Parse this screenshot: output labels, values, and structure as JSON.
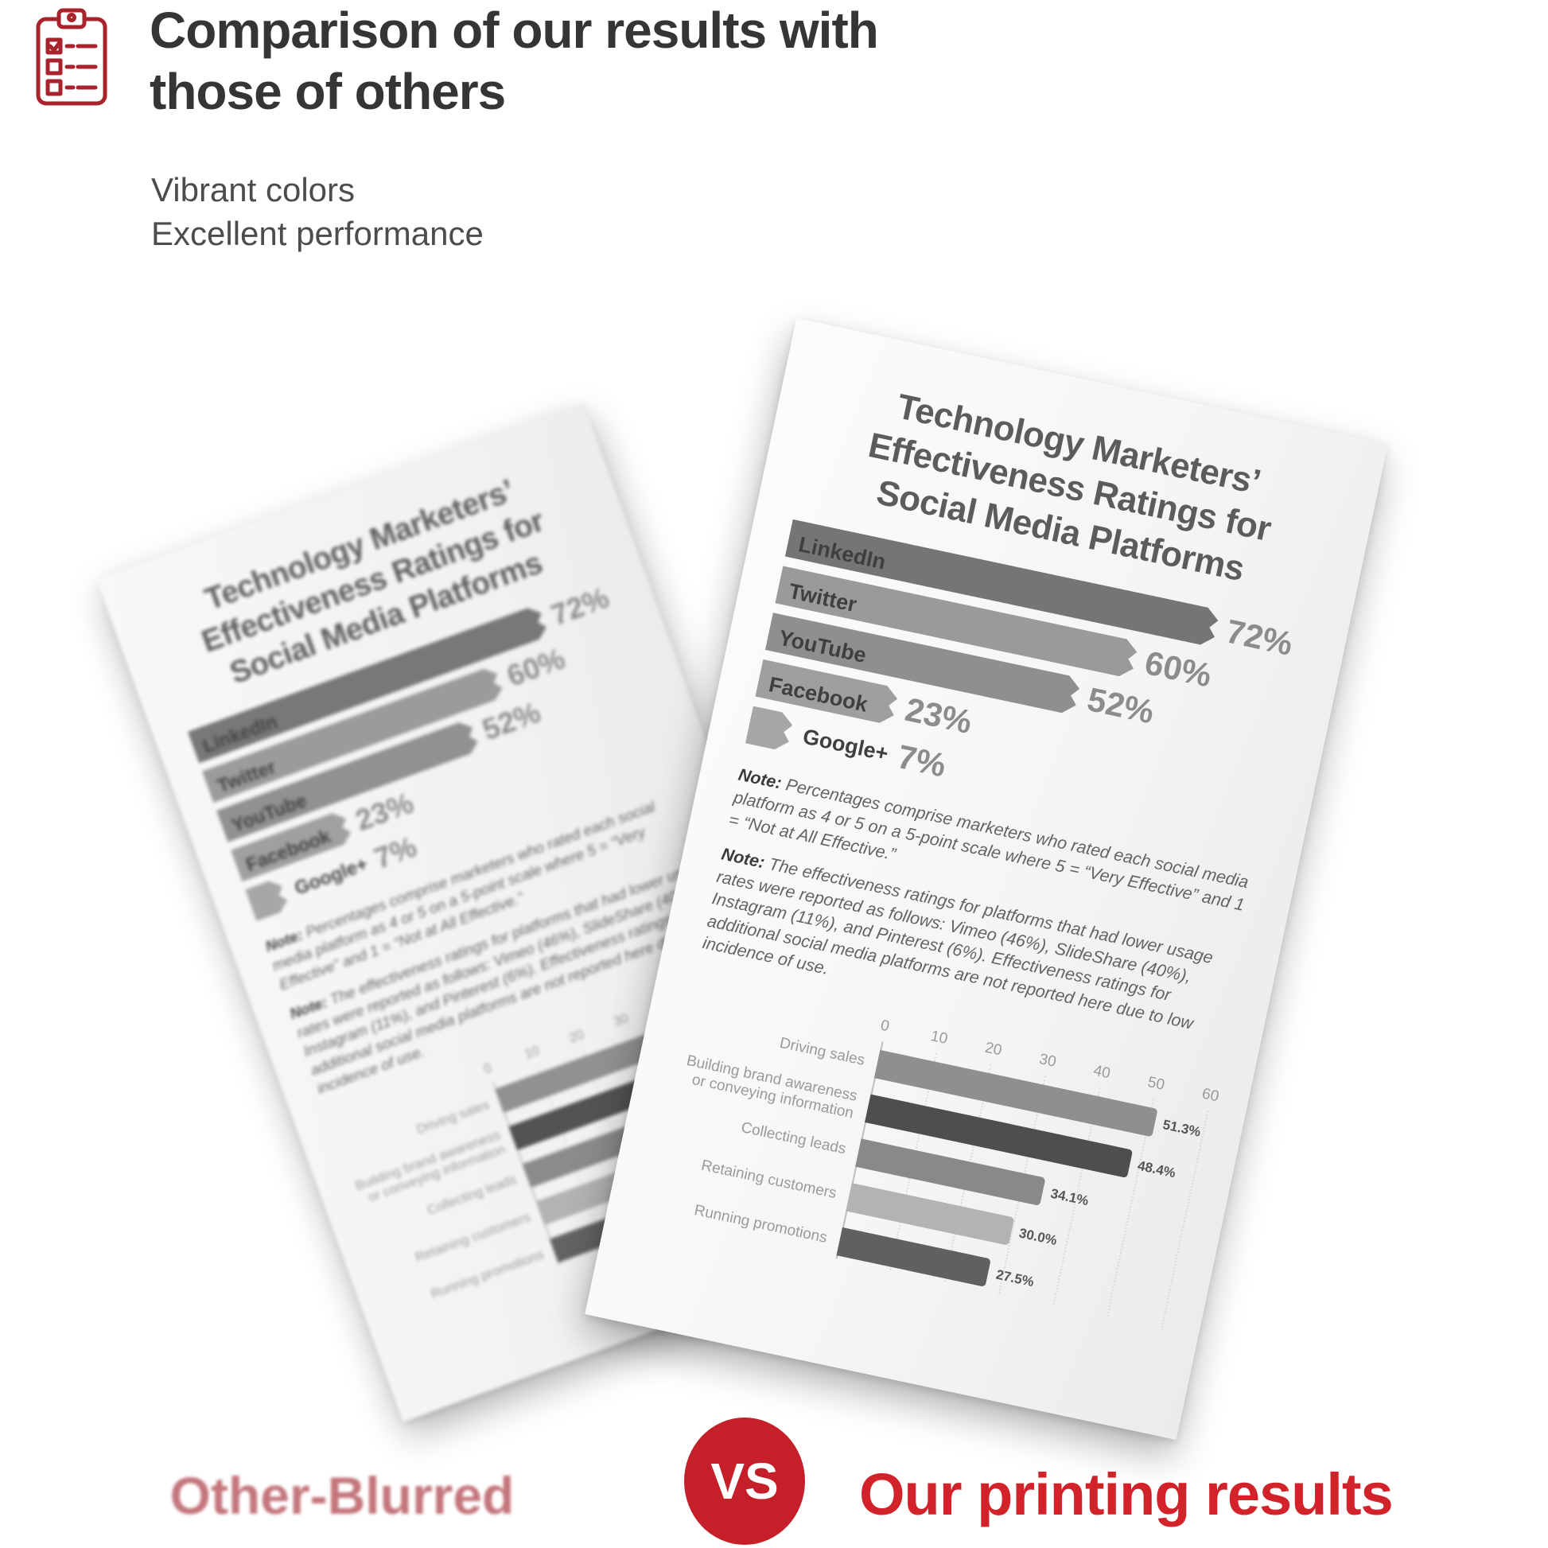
{
  "header": {
    "icon": "checklist-clipboard-icon",
    "icon_color": "#a8232b",
    "title_line1": "Comparison of our results with",
    "title_line2": "those of others",
    "subtitle_line1": "Vibrant colors",
    "subtitle_line2": "Excellent performance"
  },
  "papers": {
    "left": {
      "style": "blurred-print",
      "rotation_deg": -20
    },
    "right": {
      "style": "sharp-print",
      "rotation_deg": 12
    }
  },
  "notes": [
    {
      "label": "Note:",
      "text": "Percentages comprise marketers who rated each social media platform as 4 or 5 on a 5-point scale where 5 = “Very Effective” and 1 = “Not at All Effective.”"
    },
    {
      "label": "Note:",
      "text": "The effectiveness ratings for platforms that had lower usage rates were reported as follows: Vimeo (46%), SlideShare (40%), Instagram (11%), and Pinterest (6%). Effectiveness ratings for additional social media platforms are not reported here due to low incidence of use."
    }
  ],
  "chart_data": [
    {
      "type": "bar",
      "orientation": "horizontal",
      "title": "Technology Marketers’ Effectiveness Ratings for Social Media Platforms",
      "title_lines": [
        "Technology Marketers’",
        "Effectiveness Ratings for",
        "Social Media Platforms"
      ],
      "categories": [
        "LinkedIn",
        "Twitter",
        "YouTube",
        "Facebook",
        "Google+"
      ],
      "values": [
        72,
        60,
        52,
        23,
        7
      ],
      "value_suffix": "%",
      "xlim": [
        0,
        87
      ],
      "grid": "off",
      "bar_colors": [
        "#757575",
        "#9a9a9a",
        "#8f8f8f",
        "#9f9f9f",
        "#a6a6a6"
      ],
      "value_label_color": "#8c8c8c",
      "category_label_color": "#3f3f3f"
    },
    {
      "type": "bar",
      "orientation": "horizontal",
      "title": "",
      "categories": [
        "Driving sales",
        "Building brand awareness or conveying information",
        "Collecting leads",
        "Retaining customers",
        "Running promotions"
      ],
      "values": [
        51.3,
        48.4,
        34.1,
        30.0,
        27.5
      ],
      "value_labels": [
        "51.3%",
        "48.4%",
        "34.1%",
        "30.0%",
        "27.5%"
      ],
      "x_ticks": [
        0,
        10,
        20,
        30,
        40,
        50,
        60
      ],
      "xlim": [
        0,
        60
      ],
      "grid": "dotted-vertical",
      "bar_colors": [
        "#8f8f8f",
        "#4e4e4e",
        "#898989",
        "#b3b3b3",
        "#606060"
      ]
    }
  ],
  "footer": {
    "left_label": "Other-Blurred",
    "vs": "VS",
    "right_label": "Our printing results",
    "left_label_color": "#c4767c",
    "accent_color": "#c5202a",
    "right_label_color": "#d2232a"
  }
}
